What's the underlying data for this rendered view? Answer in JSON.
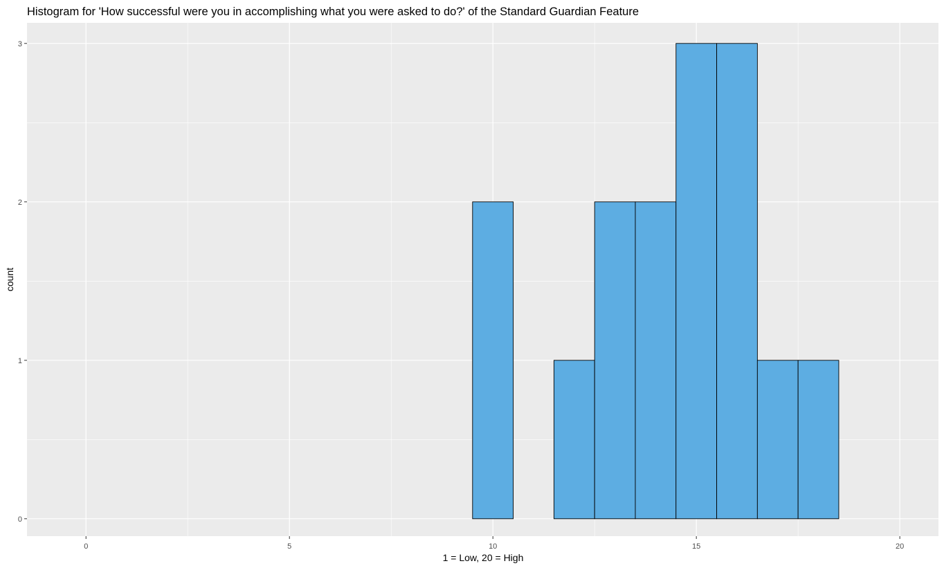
{
  "chart_data": {
    "type": "bar",
    "subtype": "histogram",
    "title": "Histogram for 'How successful were you in accomplishing what you were asked to do?' of the Standard Guardian Feature",
    "xlabel": "1 = Low, 20 = High",
    "ylabel": "count",
    "binwidth": 1,
    "bins": [
      {
        "center": 10,
        "count": 2
      },
      {
        "center": 11,
        "count": 0
      },
      {
        "center": 12,
        "count": 1
      },
      {
        "center": 13,
        "count": 2
      },
      {
        "center": 14,
        "count": 2
      },
      {
        "center": 15,
        "count": 3
      },
      {
        "center": 16,
        "count": 3
      },
      {
        "center": 17,
        "count": 1
      },
      {
        "center": 18,
        "count": 1
      }
    ],
    "xlim": [
      -1.45,
      20.95
    ],
    "ylim": [
      -0.11,
      3.13
    ],
    "x_ticks": [
      0,
      5,
      10,
      15,
      20
    ],
    "y_ticks": [
      0,
      1,
      2,
      3
    ],
    "x_minor_ticks": [
      2.5,
      7.5,
      12.5,
      17.5
    ],
    "y_minor_ticks": [
      0.5,
      1.5,
      2.5
    ],
    "grid": true,
    "colors": {
      "panel_background": "#ebebeb",
      "grid": "#ffffff",
      "bar_fill": "#5dade2",
      "bar_outline": "#000000",
      "tick_label": "#4d4d4d",
      "tick_mark": "#333333"
    }
  }
}
